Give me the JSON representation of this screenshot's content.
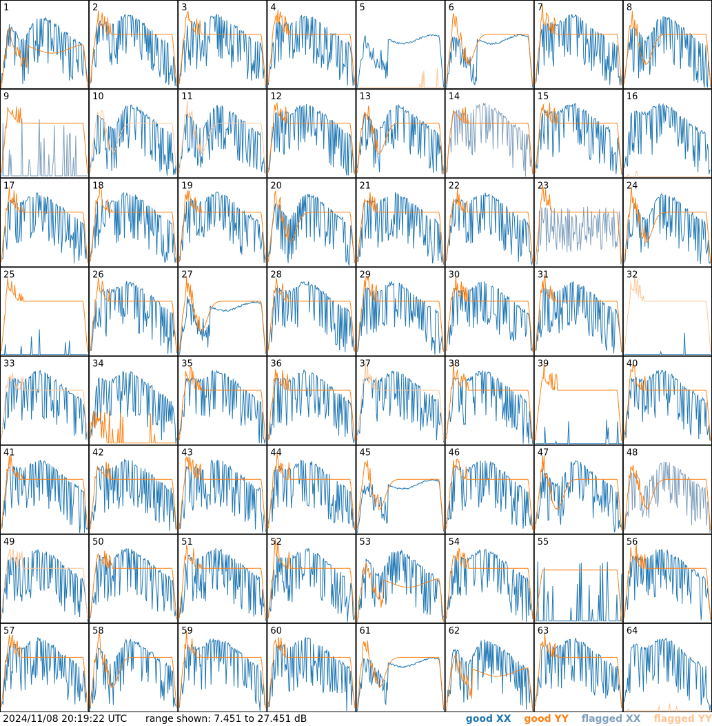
{
  "footer": {
    "timestamp": "2024/11/08 20:19:22 UTC",
    "range_text": "range shown: 7.451 to 27.451 dB"
  },
  "legend": [
    {
      "label": "good XX",
      "color": "#1f77b4"
    },
    {
      "label": "good YY",
      "color": "#ff7f0e"
    },
    {
      "label": "flagged XX",
      "color": "#7f9fbd"
    },
    {
      "label": "flagged YY",
      "color": "#ffc595"
    }
  ],
  "chart_data": {
    "type": "line",
    "title": "",
    "ylim": [
      7.451,
      27.451
    ],
    "units": "dB",
    "grid": false,
    "layout": "8x8 small multiples",
    "panels": [
      {
        "id": "1",
        "xx": "good",
        "yy": "good",
        "shape": "orange-dip"
      },
      {
        "id": "2",
        "xx": "good",
        "yy": "good",
        "shape": "normal"
      },
      {
        "id": "3",
        "xx": "good",
        "yy": "good",
        "shape": "normal"
      },
      {
        "id": "4",
        "xx": "good",
        "yy": "good",
        "shape": "normal"
      },
      {
        "id": "5",
        "xx": "good",
        "yy": "flagged",
        "shape": "blue-dip-yy-spikes"
      },
      {
        "id": "6",
        "xx": "good",
        "yy": "good",
        "shape": "blue-dip-deep"
      },
      {
        "id": "7",
        "xx": "good",
        "yy": "good",
        "shape": "normal"
      },
      {
        "id": "8",
        "xx": "good",
        "yy": "good",
        "shape": "normal-dip"
      },
      {
        "id": "9",
        "xx": "flagged",
        "yy": "good",
        "shape": "xx-spikes"
      },
      {
        "id": "10",
        "xx": "good",
        "yy": "flagged",
        "shape": "normal-dip"
      },
      {
        "id": "11",
        "xx": "good",
        "yy": "flagged",
        "shape": "normal-dip"
      },
      {
        "id": "12",
        "xx": "good",
        "yy": "good",
        "shape": "normal"
      },
      {
        "id": "13",
        "xx": "good",
        "yy": "good",
        "shape": "normal-dip"
      },
      {
        "id": "14",
        "xx": "flagged",
        "yy": "good",
        "shape": "normal"
      },
      {
        "id": "15",
        "xx": "good",
        "yy": "good",
        "shape": "normal"
      },
      {
        "id": "16",
        "xx": "good",
        "yy": "flagged",
        "shape": "xx-only-yy-flat"
      },
      {
        "id": "17",
        "xx": "good",
        "yy": "good",
        "shape": "normal"
      },
      {
        "id": "18",
        "xx": "good",
        "yy": "good",
        "shape": "normal"
      },
      {
        "id": "19",
        "xx": "good",
        "yy": "good",
        "shape": "normal"
      },
      {
        "id": "20",
        "xx": "good",
        "yy": "good",
        "shape": "normal-dip"
      },
      {
        "id": "21",
        "xx": "good",
        "yy": "good",
        "shape": "normal"
      },
      {
        "id": "22",
        "xx": "good",
        "yy": "good",
        "shape": "normal"
      },
      {
        "id": "23",
        "xx": "flagged",
        "yy": "good",
        "shape": "xx-noise"
      },
      {
        "id": "24",
        "xx": "good",
        "yy": "good",
        "shape": "normal-dip"
      },
      {
        "id": "25",
        "xx": "good",
        "yy": "good",
        "shape": "yy-only"
      },
      {
        "id": "26",
        "xx": "good",
        "yy": "good",
        "shape": "normal"
      },
      {
        "id": "27",
        "xx": "good",
        "yy": "good",
        "shape": "blue-dip"
      },
      {
        "id": "28",
        "xx": "good",
        "yy": "good",
        "shape": "normal"
      },
      {
        "id": "29",
        "xx": "good",
        "yy": "good",
        "shape": "normal"
      },
      {
        "id": "30",
        "xx": "good",
        "yy": "good",
        "shape": "normal"
      },
      {
        "id": "31",
        "xx": "good",
        "yy": "good",
        "shape": "normal"
      },
      {
        "id": "32",
        "xx": "good",
        "yy": "flagged",
        "shape": "yy-only"
      },
      {
        "id": "33",
        "xx": "good",
        "yy": "flagged",
        "shape": "normal"
      },
      {
        "id": "34",
        "xx": "good",
        "yy": "good",
        "shape": "yy-spikes"
      },
      {
        "id": "35",
        "xx": "good",
        "yy": "good",
        "shape": "normal"
      },
      {
        "id": "36",
        "xx": "good",
        "yy": "good",
        "shape": "normal"
      },
      {
        "id": "37",
        "xx": "good",
        "yy": "flagged",
        "shape": "normal"
      },
      {
        "id": "38",
        "xx": "good",
        "yy": "good",
        "shape": "normal"
      },
      {
        "id": "39",
        "xx": "good",
        "yy": "good",
        "shape": "yy-only"
      },
      {
        "id": "40",
        "xx": "good",
        "yy": "good",
        "shape": "normal"
      },
      {
        "id": "41",
        "xx": "good",
        "yy": "good",
        "shape": "normal"
      },
      {
        "id": "42",
        "xx": "good",
        "yy": "good",
        "shape": "normal"
      },
      {
        "id": "43",
        "xx": "good",
        "yy": "good",
        "shape": "normal"
      },
      {
        "id": "44",
        "xx": "good",
        "yy": "good",
        "shape": "normal"
      },
      {
        "id": "45",
        "xx": "good",
        "yy": "good",
        "shape": "blue-dip"
      },
      {
        "id": "46",
        "xx": "good",
        "yy": "good",
        "shape": "normal"
      },
      {
        "id": "47",
        "xx": "good",
        "yy": "good",
        "shape": "normal-dip"
      },
      {
        "id": "48",
        "xx": "flagged",
        "yy": "good",
        "shape": "normal-dip"
      },
      {
        "id": "49",
        "xx": "good",
        "yy": "flagged",
        "shape": "normal"
      },
      {
        "id": "50",
        "xx": "good",
        "yy": "good",
        "shape": "normal"
      },
      {
        "id": "51",
        "xx": "good",
        "yy": "good",
        "shape": "normal"
      },
      {
        "id": "52",
        "xx": "good",
        "yy": "good",
        "shape": "normal"
      },
      {
        "id": "53",
        "xx": "good",
        "yy": "good",
        "shape": "orange-dip"
      },
      {
        "id": "54",
        "xx": "good",
        "yy": "good",
        "shape": "normal"
      },
      {
        "id": "55",
        "xx": "good",
        "yy": "good",
        "shape": "xx-spikes-yy-flat"
      },
      {
        "id": "56",
        "xx": "good",
        "yy": "good",
        "shape": "normal"
      },
      {
        "id": "57",
        "xx": "good",
        "yy": "good",
        "shape": "normal"
      },
      {
        "id": "58",
        "xx": "good",
        "yy": "good",
        "shape": "normal-dip"
      },
      {
        "id": "59",
        "xx": "good",
        "yy": "good",
        "shape": "normal"
      },
      {
        "id": "60",
        "xx": "good",
        "yy": "good",
        "shape": "normal"
      },
      {
        "id": "61",
        "xx": "good",
        "yy": "good",
        "shape": "blue-dip"
      },
      {
        "id": "62",
        "xx": "good",
        "yy": "good",
        "shape": "orange-dip"
      },
      {
        "id": "63",
        "xx": "good",
        "yy": "good",
        "shape": "normal"
      },
      {
        "id": "64",
        "xx": "good",
        "yy": "flagged",
        "shape": "xx-only"
      }
    ]
  }
}
